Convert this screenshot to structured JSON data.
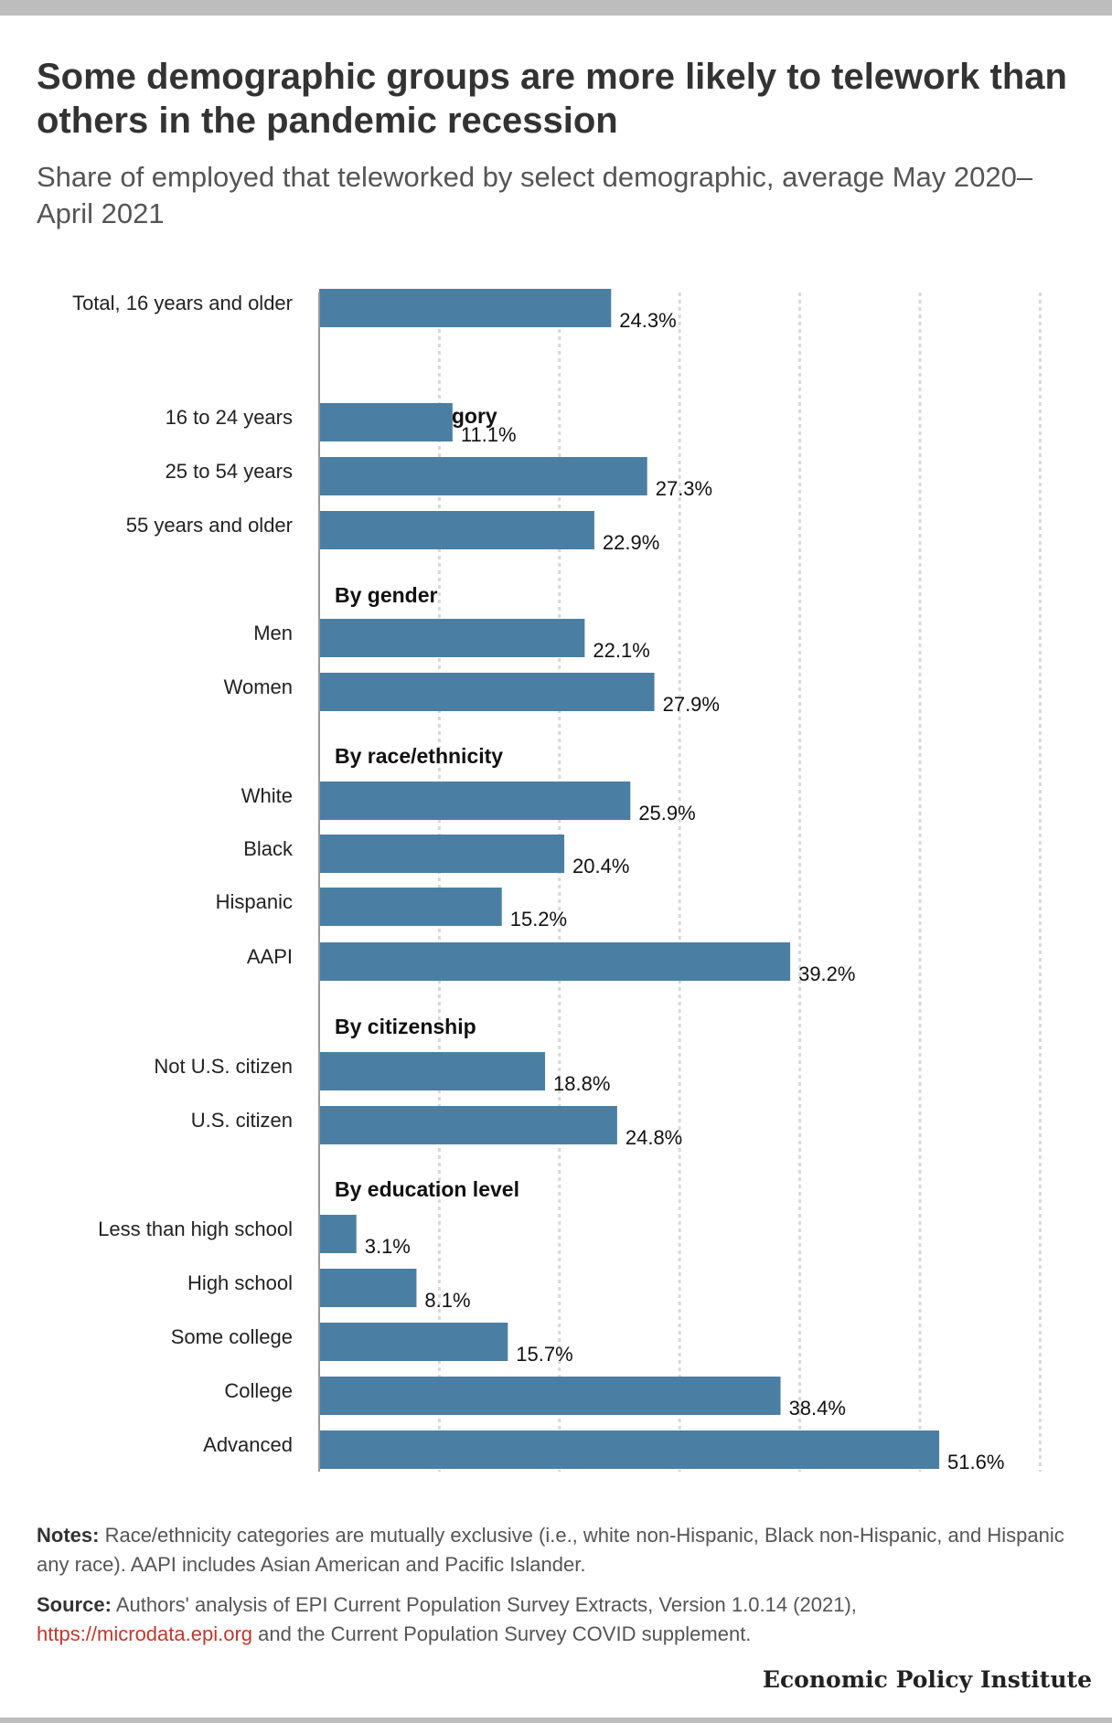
{
  "header": {
    "title": "Some demographic groups are more likely to telework than others in the pandemic recession",
    "subtitle": "Share of employed that teleworked by select demographic, average May 2020–April 2021"
  },
  "chart_data": {
    "type": "bar",
    "orientation": "horizontal",
    "value_suffix": "%",
    "xlim": [
      0,
      60
    ],
    "grid": true,
    "bar_color": "#4a7fa3",
    "rows": [
      {
        "kind": "bar",
        "label": "Total, 16 years and older",
        "value": 24.3,
        "value_label": "24.3%"
      },
      {
        "kind": "group",
        "label": "By age category"
      },
      {
        "kind": "bar",
        "label": "16 to 24 years",
        "value": 11.1,
        "value_label": "11.1%"
      },
      {
        "kind": "bar",
        "label": "25 to 54 years",
        "value": 27.3,
        "value_label": "27.3%"
      },
      {
        "kind": "bar",
        "label": "55 years and older",
        "value": 22.9,
        "value_label": "22.9%"
      },
      {
        "kind": "group",
        "label": "By gender"
      },
      {
        "kind": "bar",
        "label": "Men",
        "value": 22.1,
        "value_label": "22.1%"
      },
      {
        "kind": "bar",
        "label": "Women",
        "value": 27.9,
        "value_label": "27.9%"
      },
      {
        "kind": "group",
        "label": "By race/ethnicity"
      },
      {
        "kind": "bar",
        "label": "White",
        "value": 25.9,
        "value_label": "25.9%"
      },
      {
        "kind": "bar",
        "label": "Black",
        "value": 20.4,
        "value_label": "20.4%"
      },
      {
        "kind": "bar",
        "label": "Hispanic",
        "value": 15.2,
        "value_label": "15.2%"
      },
      {
        "kind": "bar",
        "label": "AAPI",
        "value": 39.2,
        "value_label": "39.2%"
      },
      {
        "kind": "group",
        "label": "By citizenship"
      },
      {
        "kind": "bar",
        "label": "Not U.S. citizen",
        "value": 18.8,
        "value_label": "18.8%"
      },
      {
        "kind": "bar",
        "label": "U.S. citizen",
        "value": 24.8,
        "value_label": "24.8%"
      },
      {
        "kind": "group",
        "label": "By education level"
      },
      {
        "kind": "bar",
        "label": "Less than high school",
        "value": 3.1,
        "value_label": "3.1%"
      },
      {
        "kind": "bar",
        "label": "High school",
        "value": 8.1,
        "value_label": "8.1%"
      },
      {
        "kind": "bar",
        "label": "Some college",
        "value": 15.7,
        "value_label": "15.7%"
      },
      {
        "kind": "bar",
        "label": "College",
        "value": 38.4,
        "value_label": "38.4%"
      },
      {
        "kind": "bar",
        "label": "Advanced",
        "value": 51.6,
        "value_label": "51.6%"
      }
    ]
  },
  "notes": {
    "label": "Notes:",
    "text": " Race/ethnicity categories are mutually exclusive (i.e., white non-Hispanic, Black non-Hispanic, and Hispanic any race). AAPI includes Asian American and Pacific Islander."
  },
  "source": {
    "label": "Source:",
    "text_before": " Authors' analysis of EPI Current Population Survey Extracts, Version 1.0.14 (2021), ",
    "link": "https://microdata.epi.org",
    "text_after": " and the Current Population Survey COVID supplement."
  },
  "brand": "Economic Policy Institute"
}
